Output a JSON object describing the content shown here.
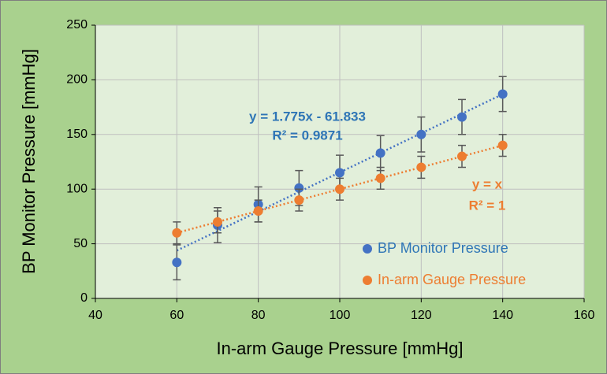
{
  "chart_data": {
    "type": "scatter",
    "xlabel": "In-arm Gauge Pressure [mmHg]",
    "ylabel": "BP Monitor Pressure [mmHg]",
    "xlim": [
      40,
      160
    ],
    "xticks": [
      40,
      60,
      80,
      100,
      120,
      140,
      160
    ],
    "ylim": [
      0,
      250
    ],
    "yticks": [
      0,
      50,
      100,
      150,
      200,
      250
    ],
    "grid": true,
    "legend": "lower right",
    "x": [
      60,
      70,
      80,
      90,
      100,
      110,
      120,
      130,
      140
    ],
    "series": [
      {
        "name": "BP Monitor Pressure",
        "color": "#4472c4",
        "values": [
          33,
          67,
          86,
          101,
          115,
          133,
          150,
          166,
          187
        ],
        "errors": [
          16,
          16,
          16,
          16,
          16,
          16,
          16,
          16,
          16
        ],
        "equation": "y = 1.775x - 61.833",
        "r2": "R² = 0.9871"
      },
      {
        "name": "In-arm Gauge Pressure",
        "color": "#ed7d31",
        "values": [
          60,
          70,
          80,
          90,
          100,
          110,
          120,
          130,
          140
        ],
        "errors": [
          10,
          10,
          10,
          10,
          10,
          10,
          10,
          10,
          10
        ],
        "equation": "y = x",
        "r2": "R² = 1"
      }
    ]
  }
}
